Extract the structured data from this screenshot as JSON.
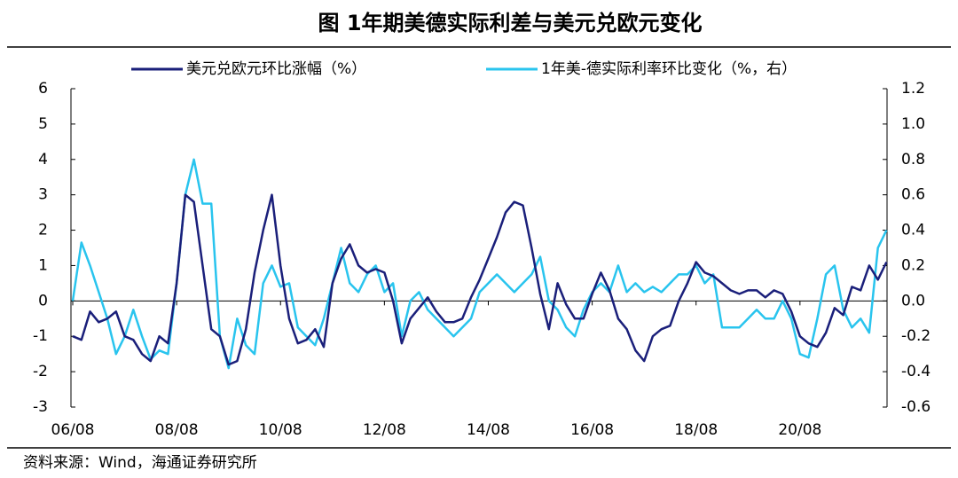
{
  "chart_data": {
    "type": "line",
    "title": "图 1年期美德实际利差与美元兑欧元变化",
    "source": "资料来源：Wind，海通证券研究所",
    "legend": "top",
    "categories": [
      "06/08",
      null,
      null,
      null,
      null,
      null,
      null,
      null,
      null,
      null,
      null,
      null,
      "08/08",
      null,
      null,
      null,
      null,
      null,
      null,
      null,
      null,
      null,
      null,
      null,
      "10/08",
      null,
      null,
      null,
      null,
      null,
      null,
      null,
      null,
      null,
      null,
      null,
      "12/08",
      null,
      null,
      null,
      null,
      null,
      null,
      null,
      null,
      null,
      null,
      null,
      "14/08",
      null,
      null,
      null,
      null,
      null,
      null,
      null,
      null,
      null,
      null,
      null,
      "16/08",
      null,
      null,
      null,
      null,
      null,
      null,
      null,
      null,
      null,
      null,
      null,
      "18/08",
      null,
      null,
      null,
      null,
      null,
      null,
      null,
      null,
      null,
      null,
      null,
      "20/08",
      null,
      null,
      null,
      null,
      null,
      null,
      null,
      null,
      null,
      null
    ],
    "ylim": [
      -3,
      6
    ],
    "yticks": [
      -3,
      -2,
      -1,
      0,
      1,
      2,
      3,
      4,
      5,
      6
    ],
    "y2lim": [
      -0.6,
      1.2
    ],
    "y2ticks": [
      -0.6,
      -0.4,
      -0.2,
      {
        "value": 0,
        "label": "0.0"
      },
      0.2,
      0.4,
      0.6,
      0.8,
      {
        "value": 1,
        "label": "1.0"
      },
      1.2
    ],
    "series": [
      {
        "name": "美元兑欧元环比涨幅（%）",
        "color": "#1a1f7a",
        "axis": "y",
        "values": [
          -1.0,
          -1.1,
          -0.3,
          -0.6,
          -0.5,
          -0.3,
          -1.0,
          -1.1,
          -1.5,
          -1.7,
          -1.0,
          -1.2,
          0.5,
          3.0,
          2.8,
          1.0,
          -0.8,
          -1.0,
          -1.8,
          -1.7,
          -0.8,
          0.8,
          2.0,
          3.0,
          1.0,
          -0.5,
          -1.2,
          -1.1,
          -0.8,
          -1.3,
          0.5,
          1.2,
          1.6,
          1.0,
          0.8,
          0.9,
          0.8,
          0.0,
          -1.2,
          -0.5,
          -0.2,
          0.1,
          -0.3,
          -0.6,
          -0.6,
          -0.5,
          0.1,
          0.6,
          1.2,
          1.8,
          2.5,
          2.8,
          2.7,
          1.5,
          0.2,
          -0.8,
          0.5,
          -0.1,
          -0.5,
          -0.5,
          0.2,
          0.8,
          0.3,
          -0.5,
          -0.8,
          -1.4,
          -1.7,
          -1.0,
          -0.8,
          -0.7,
          0.0,
          0.5,
          1.1,
          0.8,
          0.7,
          0.5,
          0.3,
          0.2,
          0.3,
          0.3,
          0.1,
          0.3,
          0.2,
          -0.3,
          -1.0,
          -1.2,
          -1.3,
          -0.9,
          -0.2,
          -0.4,
          0.4,
          0.3,
          1.0,
          0.6,
          1.1
        ]
      },
      {
        "name": "1年美-德实际利率环比变化（%，右）",
        "color": "#29c4ee",
        "axis": "y2",
        "values": [
          0.0,
          0.33,
          0.2,
          0.05,
          -0.1,
          -0.3,
          -0.2,
          -0.05,
          -0.2,
          -0.33,
          -0.28,
          -0.3,
          0.1,
          0.6,
          0.8,
          0.55,
          0.55,
          -0.2,
          -0.38,
          -0.1,
          -0.25,
          -0.3,
          0.1,
          0.2,
          0.08,
          0.1,
          -0.15,
          -0.2,
          -0.25,
          -0.1,
          0.1,
          0.3,
          0.1,
          0.05,
          0.15,
          0.2,
          0.05,
          0.1,
          -0.2,
          0.0,
          0.05,
          -0.05,
          -0.1,
          -0.15,
          -0.2,
          -0.15,
          -0.1,
          0.05,
          0.1,
          0.15,
          0.1,
          0.05,
          0.1,
          0.15,
          0.25,
          0.0,
          -0.05,
          -0.15,
          -0.2,
          -0.05,
          0.05,
          0.1,
          0.05,
          0.2,
          0.05,
          0.1,
          0.05,
          0.08,
          0.05,
          0.1,
          0.15,
          0.15,
          0.2,
          0.1,
          0.15,
          -0.15,
          -0.15,
          -0.15,
          -0.1,
          -0.05,
          -0.1,
          -0.1,
          0.0,
          -0.1,
          -0.3,
          -0.32,
          -0.1,
          0.15,
          0.2,
          -0.05,
          -0.15,
          -0.1,
          -0.18,
          0.3,
          0.4
        ]
      }
    ]
  }
}
